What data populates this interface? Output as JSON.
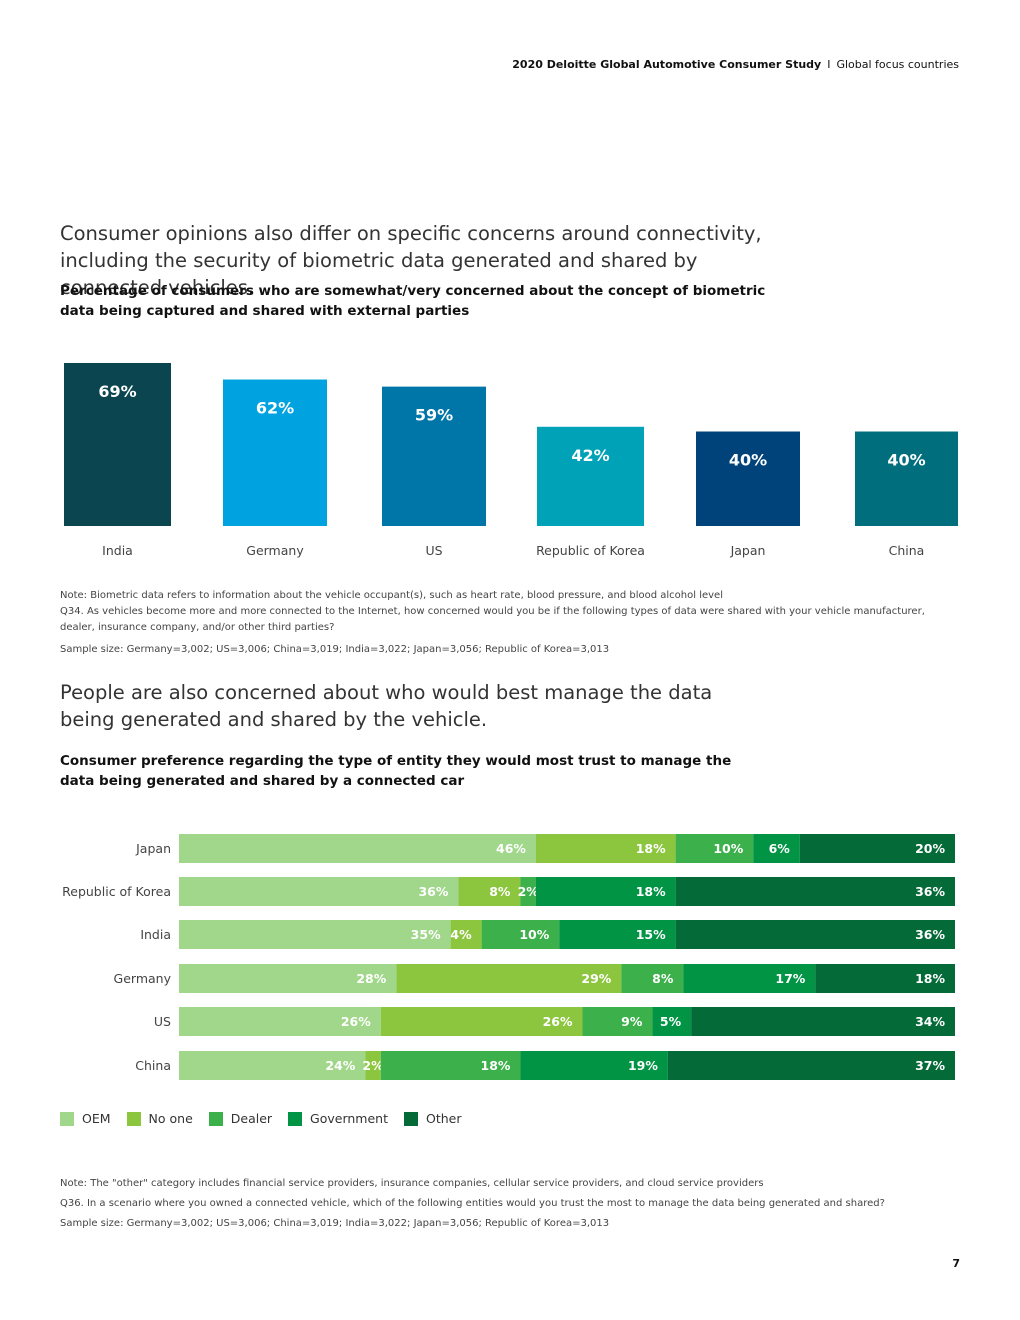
{
  "header": {
    "study": "2020 Deloitte Global Automotive Consumer Study",
    "separator": "I",
    "section": "Global focus countries"
  },
  "section1": {
    "lead": "Consumer opinions also differ on specific concerns around connectivity, including the security of biometric data generated and shared by connected vehicles.",
    "subhead": "Percentage of consumers who are somewhat/very concerned about the concept of biometric data being captured and shared with external parties",
    "notes": [
      "Note: Biometric data refers to information about the vehicle occupant(s), such as heart rate, blood pressure, and blood alcohol level",
      "Q34. As vehicles become more and more connected to the Internet, how concerned would you be if the following types of data were shared with your vehicle manufacturer, dealer, insurance company, and/or other third parties?",
      "Sample size: Germany=3,002; US=3,006; China=3,019; India=3,022; Japan=3,056; Republic of Korea=3,013"
    ]
  },
  "section2": {
    "lead": "People are also concerned about who would best manage the data being generated and shared by the vehicle.",
    "subhead": "Consumer preference regarding the type of entity they would most trust to manage the data being generated and shared by a connected car",
    "notes": [
      "Note: The \"other\" category includes financial service providers, insurance companies, cellular service providers, and cloud service providers",
      "Q36. In a scenario where you owned a connected vehicle, which of the following entities would you trust the most to manage the data being generated and shared?",
      "Sample size: Germany=3,002; US=3,006; China=3,019; India=3,022; Japan=3,056; Republic of Korea=3,013"
    ]
  },
  "page_number": "7",
  "chart_data": [
    {
      "type": "bar",
      "categories": [
        "India",
        "Germany",
        "US",
        "Republic of Korea",
        "Japan",
        "China"
      ],
      "values": [
        69,
        62,
        59,
        42,
        40,
        40
      ],
      "labels": [
        "69%",
        "62%",
        "59%",
        "42%",
        "40%",
        "40%"
      ],
      "colors": [
        "#0b4550",
        "#00a3e0",
        "#0076a8",
        "#00a2b8",
        "#00427a",
        "#006e7d"
      ],
      "ylim": [
        0,
        69
      ],
      "unit": "%"
    },
    {
      "type": "bar",
      "orientation": "horizontal",
      "stacked": true,
      "categories": [
        "Japan",
        "Republic of Korea",
        "India",
        "Germany",
        "US",
        "China"
      ],
      "series": [
        {
          "name": "OEM",
          "color": "#a0d78a",
          "values": [
            46,
            36,
            35,
            28,
            26,
            24
          ],
          "labels": [
            "46%",
            "36%",
            "35%",
            "28%",
            "26%",
            "24%"
          ]
        },
        {
          "name": "No one",
          "color": "#8cc63f",
          "values": [
            18,
            8,
            4,
            29,
            26,
            2
          ],
          "labels": [
            "18%",
            "8%",
            "4%",
            "29%",
            "26%",
            "2%"
          ]
        },
        {
          "name": "Dealer",
          "color": "#3cb04a",
          "values": [
            10,
            2,
            10,
            8,
            9,
            18
          ],
          "labels": [
            "10%",
            "2%",
            "10%",
            "8%",
            "9%",
            "18%"
          ]
        },
        {
          "name": "Government",
          "color": "#009444",
          "values": [
            6,
            18,
            15,
            17,
            5,
            19
          ],
          "labels": [
            "6%",
            "18%",
            "15%",
            "17%",
            "5%",
            "19%"
          ]
        },
        {
          "name": "Other",
          "color": "#046a38",
          "values": [
            20,
            36,
            36,
            18,
            34,
            37
          ],
          "labels": [
            "20%",
            "36%",
            "36%",
            "18%",
            "34%",
            "37%"
          ]
        }
      ],
      "legend": "bottom-left",
      "unit": "%"
    }
  ]
}
